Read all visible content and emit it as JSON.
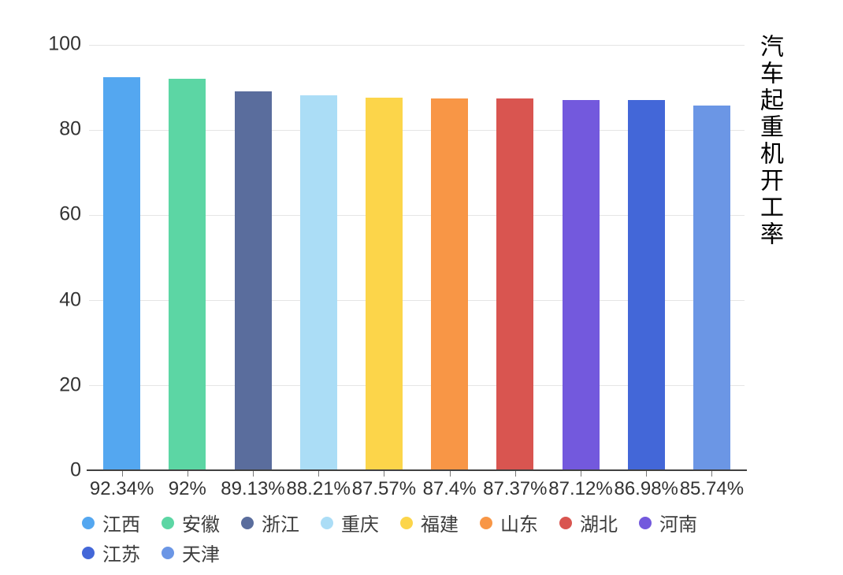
{
  "title": "汽车起重机开工率",
  "chart_data": {
    "type": "bar",
    "title": "汽车起重机开工率",
    "categories": [
      "江西",
      "安徽",
      "浙江",
      "重庆",
      "福建",
      "山东",
      "湖北",
      "河南",
      "江苏",
      "天津"
    ],
    "values": [
      92.34,
      92,
      89.13,
      88.21,
      87.57,
      87.4,
      87.37,
      87.12,
      86.98,
      85.74
    ],
    "value_labels": [
      "92.34%",
      "92%",
      "89.13%",
      "88.21%",
      "87.57%",
      "87.4%",
      "87.37%",
      "87.12%",
      "86.98%",
      "85.74%"
    ],
    "colors": [
      "#54a7f0",
      "#5cd6a4",
      "#5a6d9d",
      "#abddf6",
      "#fcd54a",
      "#f89646",
      "#d95550",
      "#7359dd",
      "#4367d8",
      "#6b96e5"
    ],
    "xlabel": "",
    "ylabel": "",
    "ylim": [
      0,
      100
    ],
    "yticks": [
      0,
      20,
      40,
      60,
      80,
      100
    ],
    "grid": true,
    "legend_position": "bottom"
  }
}
